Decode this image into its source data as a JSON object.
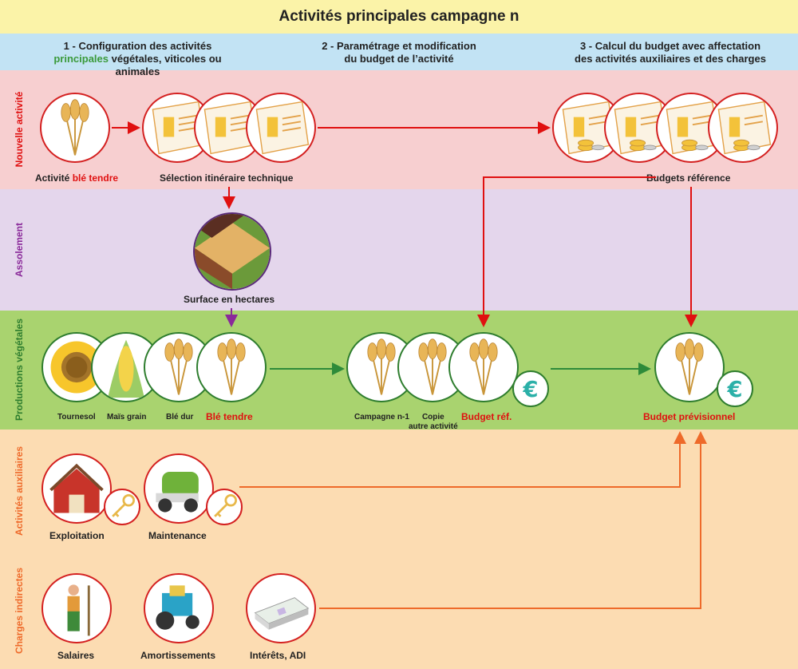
{
  "title": "Activités principales campagne n",
  "steps": {
    "s1_line1": "1 - Configuration des activités",
    "s1_green": "principales",
    "s1_rest": " végétales, viticoles ou animales",
    "s2_line1": "2 - Paramétrage et modification",
    "s2_line2": "du budget de l’activité",
    "s3_line1": "3 - Calcul du budget avec affectation",
    "s3_line2": "des activités auxiliaires et des charges"
  },
  "bands": {
    "new": "Nouvelle activité",
    "assol": "Assolement",
    "prod": "Productions végétales",
    "aux": "Activités auxiliaires",
    "charges": "Charges indirectes"
  },
  "labels": {
    "activite_prefix": "Activité ",
    "activite_highlight": "blé tendre",
    "selection": "Sélection itinéraire technique",
    "budgets_ref": "Budgets référence",
    "surface": "Surface en hectares",
    "tournesol": "Tournesol",
    "mais": "Maïs grain",
    "ble_dur": "Blé dur",
    "ble_tendre": "Blé tendre",
    "campagne": "Campagne n-1",
    "copie_1": "Copie",
    "copie_2": "autre activité",
    "budget_ref_short": "Budget réf.",
    "budget_prev": "Budget prévisionnel",
    "exploitation": "Exploitation",
    "maintenance": "Maintenance",
    "salaires": "Salaires",
    "amortissements": "Amortissements",
    "interets": "Intérêts, ADI"
  },
  "icons": [
    "wheat-icon",
    "sunflower-icon",
    "corn-icon",
    "field-icon",
    "euro-icon",
    "barn-icon",
    "baler-icon",
    "key-icon",
    "farmer-icon",
    "tractor-icon",
    "banknotes-icon",
    "crop-card-icon",
    "budget-card-icon"
  ],
  "colors": {
    "title_band": "#fbf3a8",
    "steps_band": "#c2e3f4",
    "new_band": "#f7cfd0",
    "assol_band": "#e4d6ec",
    "prod_band": "#a9d36f",
    "aux_band": "#fcdcb2",
    "red_arrow": "#e01010",
    "purple_arrow": "#8a2a9a",
    "green_arrow": "#2e8b3a",
    "orange_arrow": "#ee6a2a"
  }
}
